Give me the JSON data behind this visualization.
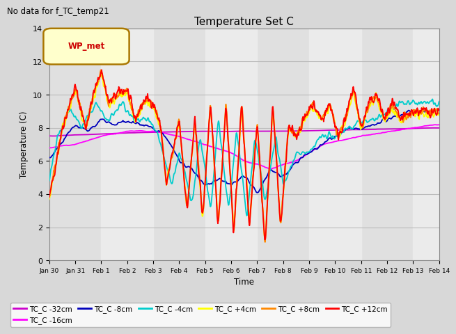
{
  "title": "Temperature Set C",
  "suptitle": "No data for f_TC_temp21",
  "xlabel": "Time",
  "ylabel": "Temperature (C)",
  "ylim": [
    0,
    14
  ],
  "legend_label": "WP_met",
  "series_labels": [
    "TC_C -32cm",
    "TC_C -16cm",
    "TC_C -8cm",
    "TC_C -4cm",
    "TC_C +4cm",
    "TC_C +8cm",
    "TC_C +12cm"
  ],
  "series_colors": [
    "#cc00cc",
    "#ff00ff",
    "#0000bb",
    "#00cccc",
    "#ffff00",
    "#ff8800",
    "#ff0000"
  ],
  "bg_color": "#d8d8d8",
  "plot_bg_light": "#e8e8e8",
  "plot_bg_dark": "#d0d0d0",
  "grid_color": "#bbbbbb",
  "n_points": 1000,
  "tick_labels": [
    "Jan 30",
    "Jan 31",
    "Feb 1",
    "Feb 2",
    "Feb 3",
    "Feb 4",
    "Feb 5",
    "Feb 6",
    "Feb 7",
    "Feb 8",
    "Feb 9",
    "Feb 10",
    "Feb 11",
    "Feb 12",
    "Feb 13",
    "Feb 14"
  ],
  "yticks": [
    0,
    2,
    4,
    6,
    8,
    10,
    12,
    14
  ]
}
